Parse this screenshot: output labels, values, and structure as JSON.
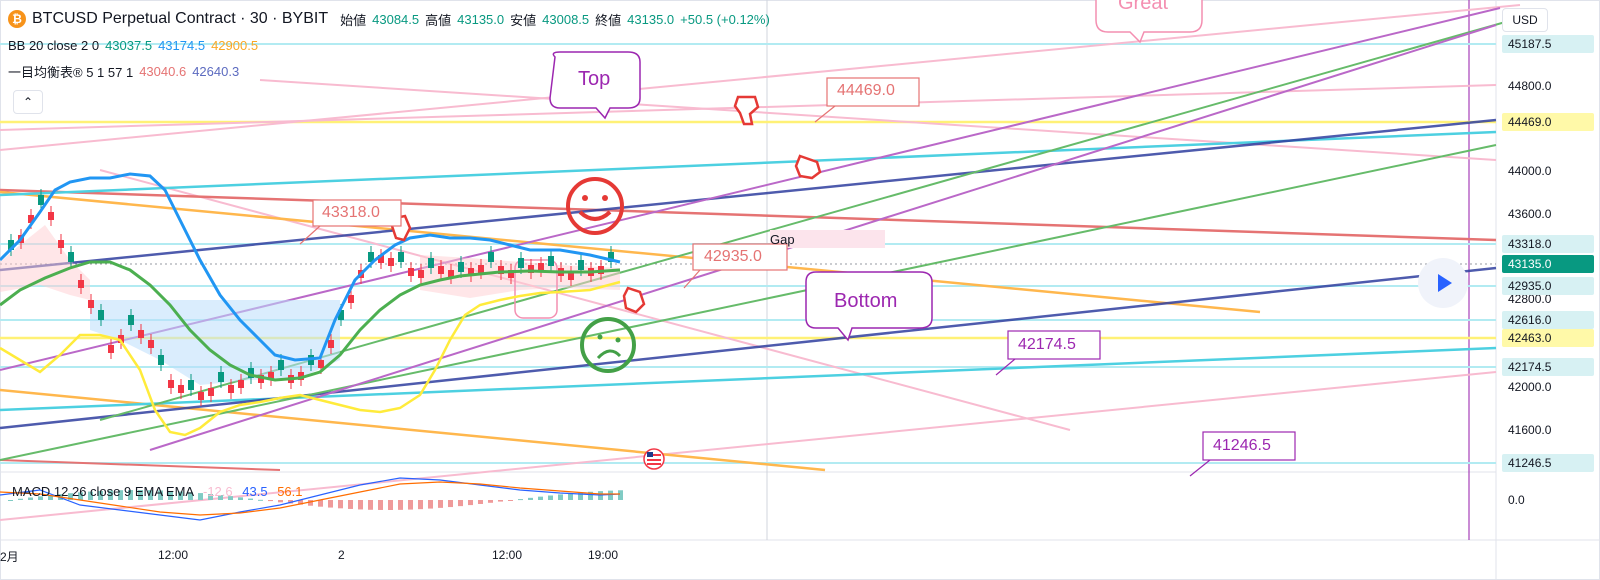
{
  "symbol": {
    "name": "BTCUSD Perpetual Contract · 30 · BYBIT",
    "open_label": "始値",
    "open": "43084.5",
    "high_label": "高値",
    "high": "43135.0",
    "low_label": "安値",
    "low": "43008.5",
    "close_label": "終値",
    "close": "43135.0",
    "change": "+50.5 (+0.12%)"
  },
  "indicators": {
    "bb": {
      "label": "BB 20 close 2 0",
      "v1": "43037.5",
      "v2": "43174.5",
      "v3": "42900.5"
    },
    "ichimoku": {
      "label": "一目均衡表® 5 1 57 1",
      "v1": "43040.6",
      "v2": "42640.3"
    },
    "macd": {
      "label": "MACD 12 26 close 9 EMA EMA",
      "v1": "-12.6",
      "v2": "43.5",
      "v3": "56.1"
    }
  },
  "price_axis": {
    "currency": "USD",
    "labels": [
      "44800.0",
      "44000.0",
      "43600.0",
      "42800.0",
      "42000.0",
      "41600.0",
      "0.0"
    ],
    "tags": [
      {
        "text": "45187.5",
        "bg": "#d7f1f3",
        "fg": "#131722"
      },
      {
        "text": "44469.0",
        "bg": "#fff9a8",
        "fg": "#131722"
      },
      {
        "text": "43318.0",
        "bg": "#d7f1f3",
        "fg": "#131722"
      },
      {
        "text": "43135.0",
        "bg": "#089981",
        "fg": "#ffffff"
      },
      {
        "text": "42935.0",
        "bg": "#d7f1f3",
        "fg": "#131722"
      },
      {
        "text": "42616.0",
        "bg": "#d7f1f3",
        "fg": "#131722"
      },
      {
        "text": "42463.0",
        "bg": "#fff9a8",
        "fg": "#131722"
      },
      {
        "text": "42174.5",
        "bg": "#d7f1f3",
        "fg": "#131722"
      },
      {
        "text": "41246.5",
        "bg": "#d7f1f3",
        "fg": "#131722"
      }
    ]
  },
  "time_axis": [
    "2月",
    "12:00",
    "2",
    "12:00",
    "19:00"
  ],
  "annotations": {
    "top": "Top",
    "bottom": "Bottom",
    "great": "Great",
    "gap": "Gap",
    "price_44469": "44469.0",
    "price_43318": "43318.0",
    "price_42935": "42935.0",
    "price_42174": "42174.5",
    "price_41246": "41246.5"
  },
  "colors": {
    "up": "#089981",
    "down": "#f23645",
    "bb": "#2196f3",
    "green_line": "#4caf50",
    "yellow_line": "#ffeb3b",
    "purple": "#9c27b0"
  }
}
